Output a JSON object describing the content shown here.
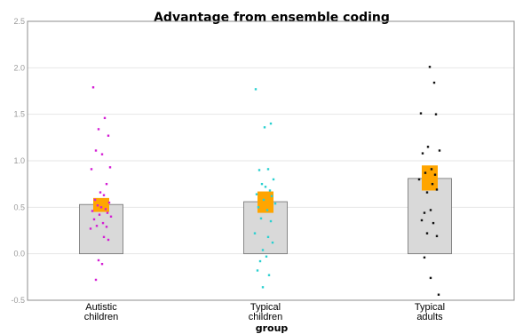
{
  "chart_data": {
    "type": "bar",
    "title": "Advantage from ensemble coding",
    "xlabel": "group",
    "ylabel": "",
    "ylim": [
      -0.5,
      2.5
    ],
    "yticks": [
      -0.5,
      0.0,
      0.5,
      1.0,
      1.5,
      2.0,
      2.5
    ],
    "ytick_labels": [
      "-0.5",
      "0.0",
      "0.5",
      "1.0",
      "1.5",
      "2.0",
      "2.5"
    ],
    "grid": "horizontal",
    "categories": [
      [
        "Autistic",
        "children"
      ],
      [
        "Typical",
        "children"
      ],
      [
        "Typical",
        "adults"
      ]
    ],
    "series": [
      {
        "values": [
          0.53,
          0.56,
          0.81
        ]
      }
    ],
    "error_ranges": [
      [
        0.45,
        0.6
      ],
      [
        0.44,
        0.67
      ],
      [
        0.68,
        0.95
      ]
    ],
    "individual_points": [
      [
        1.79,
        1.46,
        1.34,
        1.27,
        1.11,
        1.07,
        0.93,
        0.91,
        0.75,
        0.66,
        0.63,
        0.58,
        0.55,
        0.52,
        0.5,
        0.48,
        0.46,
        0.44,
        0.42,
        0.4,
        0.37,
        0.33,
        0.3,
        0.29,
        0.27,
        0.18,
        0.15,
        -0.07,
        -0.11,
        -0.28
      ],
      [
        1.77,
        1.4,
        1.36,
        0.91,
        0.9,
        0.8,
        0.75,
        0.72,
        0.68,
        0.64,
        0.62,
        0.58,
        0.54,
        0.5,
        0.47,
        0.38,
        0.35,
        0.22,
        0.18,
        0.12,
        0.04,
        -0.03,
        -0.08,
        -0.18,
        -0.23,
        -0.36
      ],
      [
        2.01,
        1.84,
        1.51,
        1.5,
        1.15,
        1.11,
        1.08,
        0.91,
        0.87,
        0.85,
        0.8,
        0.75,
        0.69,
        0.66,
        0.47,
        0.44,
        0.36,
        0.33,
        0.22,
        0.19,
        -0.04,
        -0.26,
        -0.44
      ]
    ],
    "colors": {
      "bar_fill": "#d9d9d9",
      "bar_stroke": "#707070",
      "error_box": "#ffa500",
      "points": [
        "#d41ed4",
        "#2bd0d0",
        "#111111"
      ],
      "grid": "#e6e6e6",
      "axes": "#8c8c8c"
    }
  }
}
